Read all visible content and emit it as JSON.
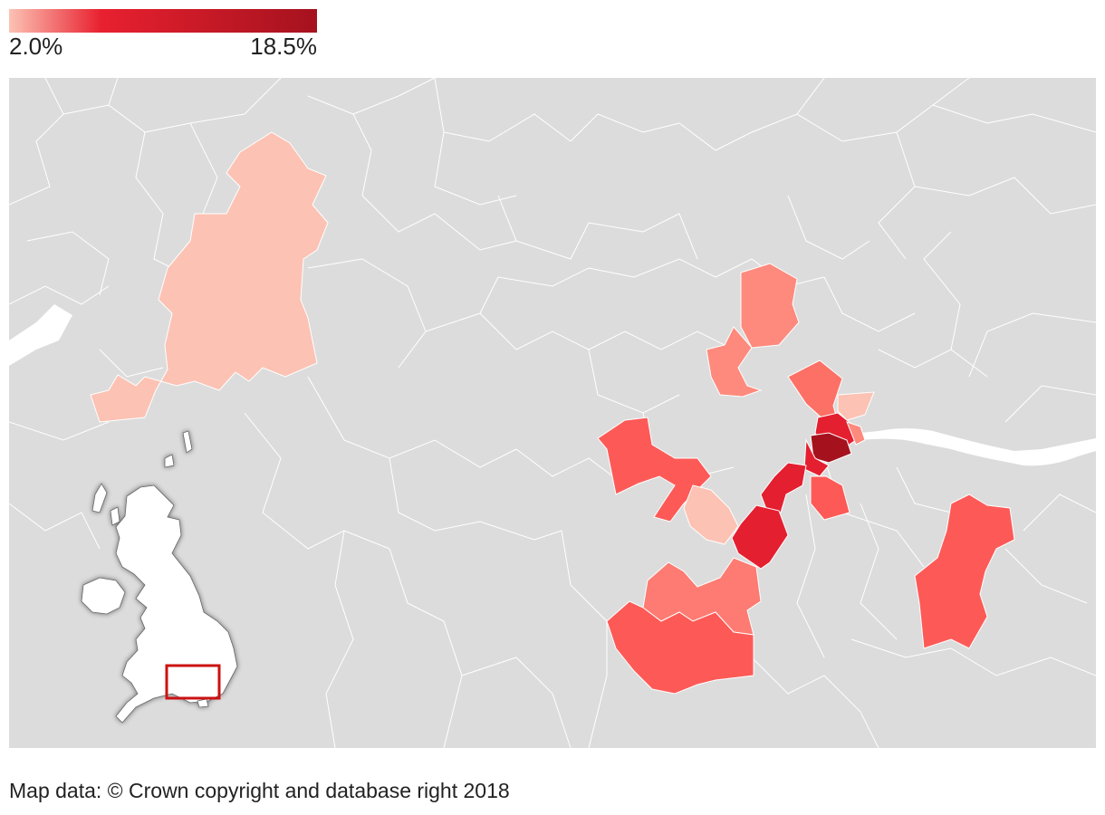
{
  "legend": {
    "min_label": "2.0%",
    "max_label": "18.5%",
    "min_value": 2.0,
    "max_value": 18.5,
    "color_low": "#fcc2b4",
    "color_mid": "#e8202f",
    "color_high": "#a5121e"
  },
  "map": {
    "background_color": "#dcdcdc",
    "border_color": "#ffffff",
    "river_color": "#ffffff",
    "inset_highlight_color": "#cc1111"
  },
  "credit": "Map data: © Crown copyright and database right 2018"
}
